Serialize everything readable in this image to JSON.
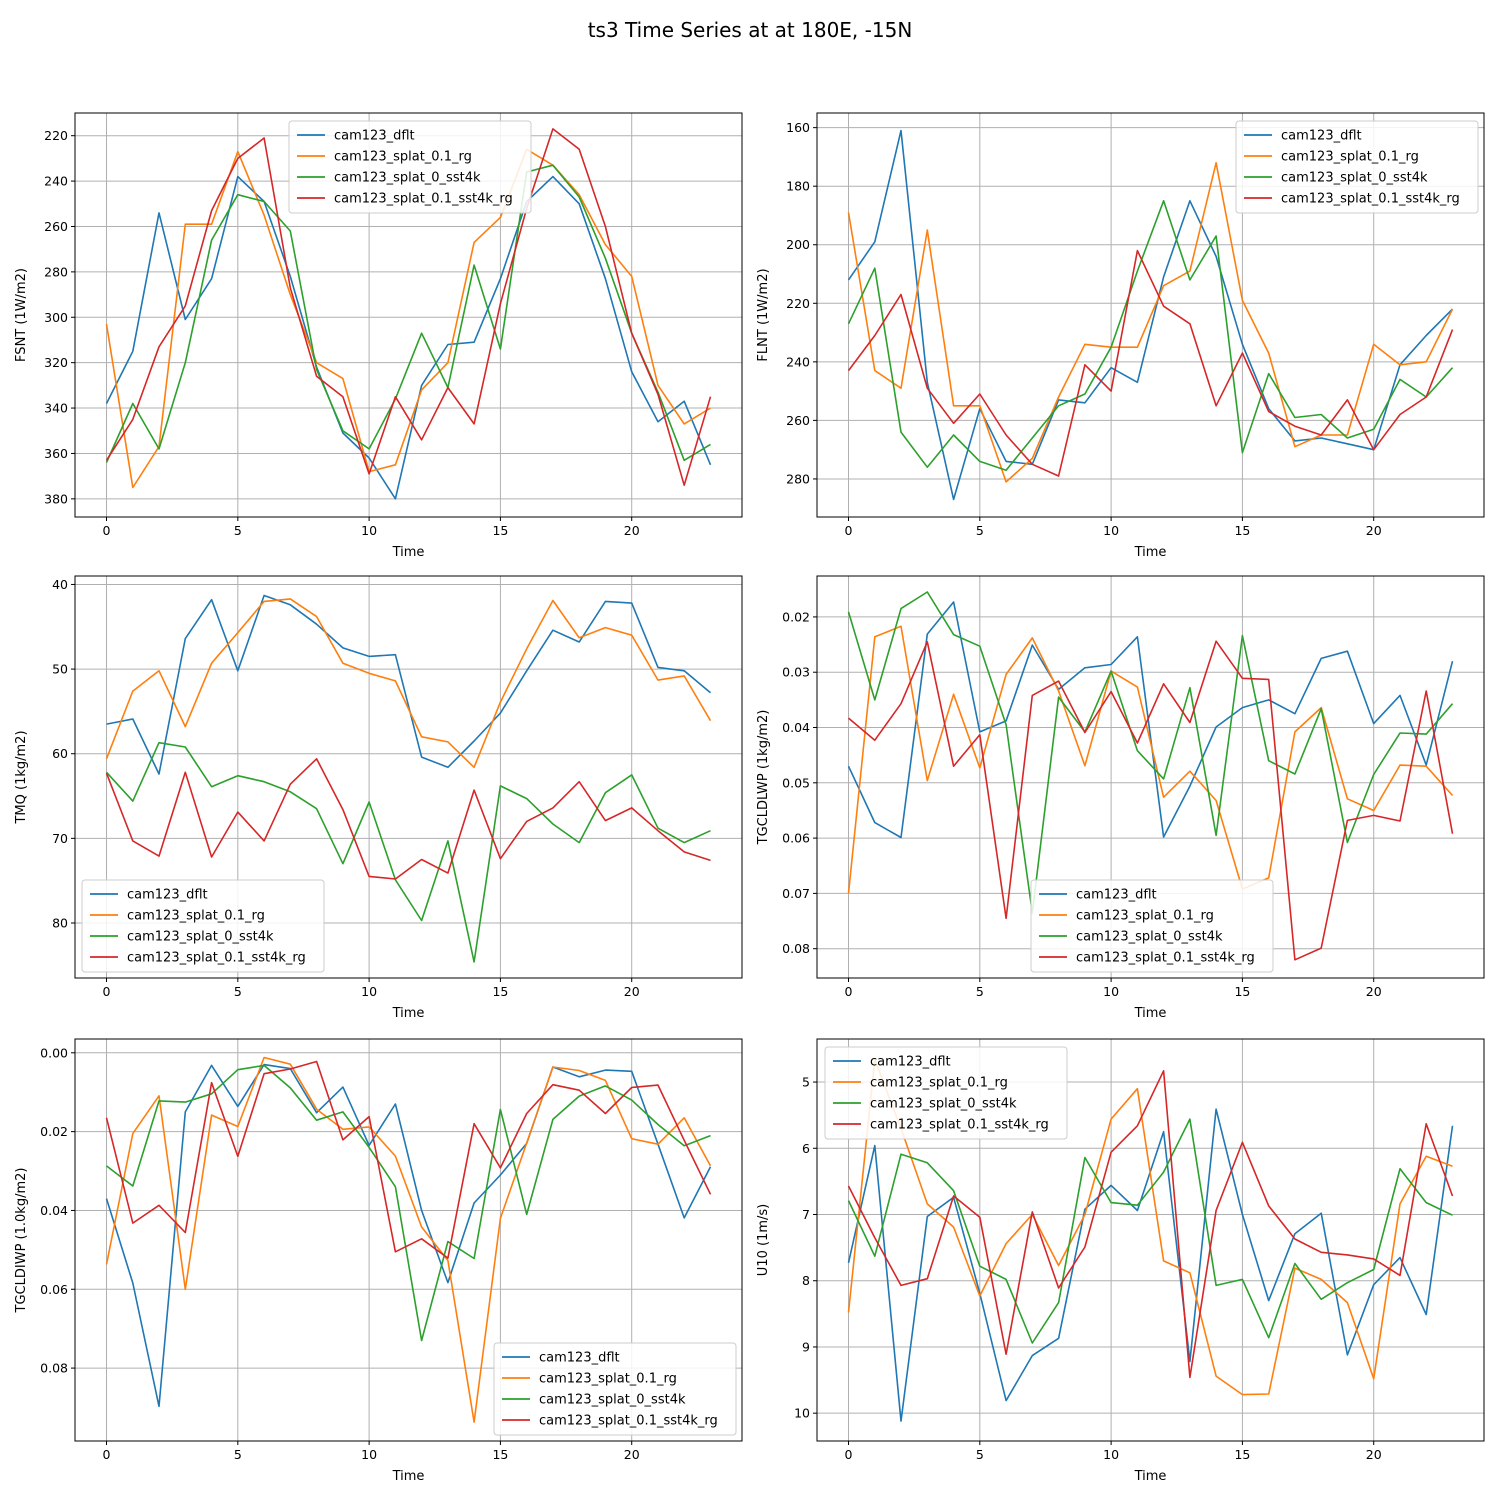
{
  "title": "ts3 Time Series at at 180E, -15N",
  "series_names": [
    "cam123_dflt",
    "cam123_splat_0.1_rg",
    "cam123_splat_0_sst4k",
    "cam123_splat_0.1_sst4k_rg"
  ],
  "colors": [
    "#1f77b4",
    "#ff7f0e",
    "#2ca02c",
    "#d62728"
  ],
  "chart_data": [
    {
      "type": "line",
      "ylabel": "FSNT (1W/m2)",
      "xlabel": "Time",
      "xlim": [
        -1.2,
        24.2
      ],
      "ylim": [
        388,
        210
      ],
      "xticks": [
        0,
        5,
        10,
        15,
        20
      ],
      "yticks": [
        220,
        240,
        260,
        280,
        300,
        320,
        340,
        360,
        380
      ],
      "ytick_labels": [
        "220",
        "240",
        "260",
        "280",
        "300",
        "320",
        "340",
        "360",
        "380"
      ],
      "legend": "top-center",
      "x": [
        0,
        1,
        2,
        3,
        4,
        5,
        6,
        7,
        8,
        9,
        10,
        11,
        12,
        13,
        14,
        15,
        16,
        17,
        18,
        19,
        20,
        21,
        22,
        23
      ],
      "series": [
        {
          "name": "cam123_dflt",
          "values": [
            338,
            315,
            254,
            301,
            283,
            238,
            249,
            282,
            322,
            351,
            362,
            380,
            330,
            312,
            311,
            283,
            249,
            238,
            250,
            283,
            324,
            346,
            337,
            365
          ]
        },
        {
          "name": "cam123_splat_0.1_rg",
          "values": [
            303,
            375,
            357,
            259,
            259,
            227,
            255,
            290,
            320,
            327,
            368,
            365,
            332,
            320,
            267,
            256,
            226,
            233,
            246,
            268,
            282,
            330,
            347,
            340
          ]
        },
        {
          "name": "cam123_splat_0_sst4k",
          "values": [
            364,
            338,
            358,
            320,
            266,
            246,
            249,
            262,
            323,
            350,
            358,
            336,
            307,
            331,
            277,
            314,
            236,
            233,
            247,
            274,
            307,
            333,
            363,
            356
          ]
        },
        {
          "name": "cam123_splat_0.1_sst4k_rg",
          "values": [
            363,
            345,
            313,
            295,
            253,
            230,
            221,
            287,
            326,
            335,
            369,
            335,
            354,
            331,
            347,
            294,
            252,
            217,
            226,
            260,
            307,
            334,
            374,
            335
          ]
        }
      ]
    },
    {
      "type": "line",
      "ylabel": "FLNT (1W/m2)",
      "xlabel": "Time",
      "xlim": [
        -1.2,
        24.2
      ],
      "ylim": [
        293,
        155
      ],
      "xticks": [
        0,
        5,
        10,
        15,
        20
      ],
      "yticks": [
        160,
        180,
        200,
        220,
        240,
        260,
        280
      ],
      "ytick_labels": [
        "160",
        "180",
        "200",
        "220",
        "240",
        "260",
        "280"
      ],
      "legend": "top-right",
      "x": [
        0,
        1,
        2,
        3,
        4,
        5,
        6,
        7,
        8,
        9,
        10,
        11,
        12,
        13,
        14,
        15,
        16,
        17,
        18,
        19,
        20,
        21,
        22,
        23
      ],
      "series": [
        {
          "name": "cam123_dflt",
          "values": [
            212,
            199,
            161,
            247,
            287,
            256,
            274,
            275,
            253,
            254,
            242,
            247,
            211,
            185,
            204,
            234,
            256,
            267,
            266,
            268,
            270,
            241,
            231,
            222
          ]
        },
        {
          "name": "cam123_splat_0.1_rg",
          "values": [
            189,
            243,
            249,
            195,
            255,
            255,
            281,
            273,
            252,
            234,
            235,
            235,
            214,
            209,
            172,
            219,
            237,
            269,
            265,
            265,
            234,
            241,
            240,
            222
          ]
        },
        {
          "name": "cam123_splat_0_sst4k",
          "values": [
            227,
            208,
            264,
            276,
            265,
            274,
            277,
            266,
            255,
            251,
            235,
            209,
            185,
            212,
            197,
            271,
            244,
            259,
            258,
            266,
            263,
            246,
            252,
            242
          ]
        },
        {
          "name": "cam123_splat_0.1_sst4k_rg",
          "values": [
            243,
            231,
            217,
            249,
            261,
            251,
            265,
            275,
            279,
            241,
            250,
            202,
            221,
            227,
            255,
            237,
            257,
            262,
            265,
            253,
            270,
            258,
            252,
            229
          ]
        }
      ]
    },
    {
      "type": "line",
      "ylabel": "TMQ (1kg/m2)",
      "xlabel": "Time",
      "xlim": [
        -1.2,
        24.2
      ],
      "ylim": [
        86.5,
        39
      ],
      "xticks": [
        0,
        5,
        10,
        15,
        20
      ],
      "yticks": [
        40,
        50,
        60,
        70,
        80
      ],
      "ytick_labels": [
        "40",
        "50",
        "60",
        "70",
        "80"
      ],
      "legend": "bottom-left",
      "x": [
        0,
        1,
        2,
        3,
        4,
        5,
        6,
        7,
        8,
        9,
        10,
        11,
        12,
        13,
        14,
        15,
        16,
        17,
        18,
        19,
        20,
        21,
        22,
        23
      ],
      "series": [
        {
          "name": "cam123_dflt",
          "values": [
            56.5,
            55.9,
            62.4,
            46.4,
            41.8,
            50.2,
            41.3,
            42.4,
            44.7,
            47.5,
            48.5,
            48.3,
            60.4,
            61.6,
            58.5,
            55.2,
            50.2,
            45.4,
            46.8,
            42.0,
            42.2,
            49.8,
            50.2,
            52.8
          ]
        },
        {
          "name": "cam123_splat_0.1_rg",
          "values": [
            60.6,
            52.6,
            50.2,
            56.8,
            49.3,
            45.7,
            42.0,
            41.7,
            43.8,
            49.3,
            50.5,
            51.4,
            58.0,
            58.6,
            61.6,
            53.9,
            47.6,
            41.9,
            46.3,
            45.1,
            46.0,
            51.3,
            50.8,
            56.1
          ]
        },
        {
          "name": "cam123_splat_0_sst4k",
          "values": [
            62.2,
            65.6,
            58.7,
            59.2,
            63.9,
            62.6,
            63.3,
            64.5,
            66.5,
            73.0,
            65.7,
            74.9,
            79.7,
            70.3,
            84.6,
            63.8,
            65.3,
            68.3,
            70.5,
            64.6,
            62.5,
            68.8,
            70.5,
            69.1
          ]
        },
        {
          "name": "cam123_splat_0.1_sst4k_rg",
          "values": [
            62.3,
            70.3,
            72.1,
            62.2,
            72.2,
            66.9,
            70.3,
            63.6,
            60.6,
            66.6,
            74.5,
            74.8,
            72.5,
            74.1,
            64.3,
            72.4,
            68.0,
            66.4,
            63.3,
            67.9,
            66.4,
            69.1,
            71.6,
            72.6
          ]
        }
      ]
    },
    {
      "type": "line",
      "ylabel": "TGCLDLWP (1kg/m2)",
      "xlabel": "Time",
      "xlim": [
        -1.2,
        24.2
      ],
      "ylim": [
        0.0853,
        0.0126
      ],
      "xticks": [
        0,
        5,
        10,
        15,
        20
      ],
      "yticks": [
        0.02,
        0.03,
        0.04,
        0.05,
        0.06,
        0.07,
        0.08
      ],
      "ytick_labels": [
        "0.02",
        "0.03",
        "0.04",
        "0.05",
        "0.06",
        "0.07",
        "0.08"
      ],
      "legend": "bottom-center",
      "x": [
        0,
        1,
        2,
        3,
        4,
        5,
        6,
        7,
        8,
        9,
        10,
        11,
        12,
        13,
        14,
        15,
        16,
        17,
        18,
        19,
        20,
        21,
        22,
        23
      ],
      "series": [
        {
          "name": "cam123_dflt",
          "values": [
            0.047,
            0.0572,
            0.0599,
            0.0231,
            0.0173,
            0.0408,
            0.0388,
            0.0251,
            0.0331,
            0.0292,
            0.0286,
            0.0236,
            0.0598,
            0.0506,
            0.0399,
            0.0364,
            0.035,
            0.0375,
            0.0275,
            0.0262,
            0.0393,
            0.0342,
            0.0468,
            0.028
          ]
        },
        {
          "name": "cam123_splat_0.1_rg",
          "values": [
            0.07,
            0.0236,
            0.0217,
            0.0496,
            0.034,
            0.0473,
            0.0304,
            0.0238,
            0.0334,
            0.0469,
            0.0298,
            0.0327,
            0.0526,
            0.0479,
            0.0532,
            0.0692,
            0.0672,
            0.0408,
            0.0364,
            0.0529,
            0.055,
            0.0468,
            0.047,
            0.0523
          ]
        },
        {
          "name": "cam123_splat_0_sst4k",
          "values": [
            0.0191,
            0.035,
            0.0185,
            0.0155,
            0.0232,
            0.0253,
            0.0395,
            0.0735,
            0.0345,
            0.0408,
            0.0298,
            0.0442,
            0.0493,
            0.0328,
            0.0595,
            0.0234,
            0.046,
            0.0484,
            0.0366,
            0.0608,
            0.0485,
            0.041,
            0.0412,
            0.0357
          ]
        },
        {
          "name": "cam123_splat_0.1_sst4k_rg",
          "values": [
            0.0383,
            0.0423,
            0.0357,
            0.0245,
            0.047,
            0.0413,
            0.0745,
            0.0342,
            0.0316,
            0.0409,
            0.0335,
            0.0428,
            0.0321,
            0.0391,
            0.0244,
            0.0311,
            0.0313,
            0.082,
            0.0799,
            0.0568,
            0.0559,
            0.0569,
            0.0334,
            0.0592
          ]
        }
      ]
    },
    {
      "type": "line",
      "ylabel": "TGCLDIWP (1.0kg/m2)",
      "xlabel": "Time",
      "xlim": [
        -1.2,
        24.2
      ],
      "ylim": [
        0.0985,
        -0.0035
      ],
      "xticks": [
        0,
        5,
        10,
        15,
        20
      ],
      "yticks": [
        0.0,
        0.02,
        0.04,
        0.06,
        0.08
      ],
      "ytick_labels": [
        "0.00",
        "0.02",
        "0.04",
        "0.06",
        "0.08"
      ],
      "legend": "bottom-right",
      "x": [
        0,
        1,
        2,
        3,
        4,
        5,
        6,
        7,
        8,
        9,
        10,
        11,
        12,
        13,
        14,
        15,
        16,
        17,
        18,
        19,
        20,
        21,
        22,
        23
      ],
      "series": [
        {
          "name": "cam123_dflt",
          "values": [
            0.037,
            0.0584,
            0.0897,
            0.015,
            0.0032,
            0.0136,
            0.003,
            0.004,
            0.0152,
            0.0087,
            0.0235,
            0.013,
            0.04,
            0.0583,
            0.0381,
            0.031,
            0.023,
            0.0036,
            0.0061,
            0.0044,
            0.0047,
            0.0232,
            0.0419,
            0.0289
          ]
        },
        {
          "name": "cam123_splat_0.1_rg",
          "values": [
            0.0537,
            0.0205,
            0.0109,
            0.06,
            0.0158,
            0.0187,
            0.0012,
            0.0029,
            0.0143,
            0.0194,
            0.0188,
            0.0262,
            0.0442,
            0.0527,
            0.0937,
            0.042,
            0.0229,
            0.0036,
            0.0045,
            0.007,
            0.0218,
            0.0232,
            0.0165,
            0.0287
          ]
        },
        {
          "name": "cam123_splat_0_sst4k",
          "values": [
            0.0287,
            0.0338,
            0.0122,
            0.0125,
            0.0104,
            0.0043,
            0.0032,
            0.0089,
            0.0171,
            0.015,
            0.024,
            0.034,
            0.073,
            0.0479,
            0.0522,
            0.0144,
            0.041,
            0.0169,
            0.011,
            0.0084,
            0.012,
            0.0182,
            0.0236,
            0.021
          ]
        },
        {
          "name": "cam123_splat_0.1_sst4k_rg",
          "values": [
            0.0165,
            0.0432,
            0.0387,
            0.0456,
            0.0076,
            0.0263,
            0.0053,
            0.0041,
            0.0022,
            0.0221,
            0.0162,
            0.0505,
            0.0472,
            0.0521,
            0.018,
            0.0292,
            0.0154,
            0.0081,
            0.0095,
            0.0154,
            0.0088,
            0.0082,
            0.0222,
            0.0359
          ]
        }
      ]
    },
    {
      "type": "line",
      "ylabel": "U10 (1m/s)",
      "xlabel": "Time",
      "xlim": [
        -1.2,
        24.2
      ],
      "ylim": [
        10.42,
        4.35
      ],
      "xticks": [
        0,
        5,
        10,
        15,
        20
      ],
      "yticks": [
        5,
        6,
        7,
        8,
        9,
        10
      ],
      "ytick_labels": [
        "5",
        "6",
        "7",
        "8",
        "9",
        "10"
      ],
      "legend": "top-left",
      "x": [
        0,
        1,
        2,
        3,
        4,
        5,
        6,
        7,
        8,
        9,
        10,
        11,
        12,
        13,
        14,
        15,
        16,
        17,
        18,
        19,
        20,
        21,
        22,
        23
      ],
      "series": [
        {
          "name": "cam123_dflt",
          "values": [
            7.73,
            5.96,
            10.12,
            7.03,
            6.74,
            8.19,
            9.81,
            9.13,
            8.87,
            6.92,
            6.56,
            6.94,
            5.75,
            9.22,
            5.41,
            7.0,
            8.3,
            7.29,
            6.98,
            9.12,
            8.06,
            7.65,
            8.51,
            5.66
          ]
        },
        {
          "name": "cam123_splat_0.1_rg",
          "values": [
            8.48,
            4.66,
            5.7,
            6.84,
            7.19,
            8.23,
            7.44,
            7.0,
            7.77,
            7.0,
            5.56,
            5.1,
            7.7,
            7.88,
            9.44,
            9.72,
            9.71,
            7.81,
            7.98,
            8.33,
            9.48,
            6.84,
            6.12,
            6.27
          ]
        },
        {
          "name": "cam123_splat_0_sst4k",
          "values": [
            6.79,
            7.63,
            6.09,
            6.22,
            6.64,
            7.78,
            7.98,
            8.94,
            8.33,
            6.14,
            6.82,
            6.86,
            6.36,
            5.56,
            8.07,
            7.98,
            8.86,
            7.74,
            8.28,
            8.03,
            7.83,
            6.31,
            6.82,
            7.01
          ]
        },
        {
          "name": "cam123_splat_0.1_sst4k_rg",
          "values": [
            6.57,
            7.35,
            8.07,
            7.97,
            6.72,
            7.04,
            9.11,
            6.96,
            8.11,
            7.49,
            6.06,
            5.66,
            4.83,
            9.46,
            6.94,
            5.91,
            6.87,
            7.37,
            7.57,
            7.61,
            7.67,
            7.92,
            5.63,
            6.72
          ]
        }
      ]
    }
  ]
}
